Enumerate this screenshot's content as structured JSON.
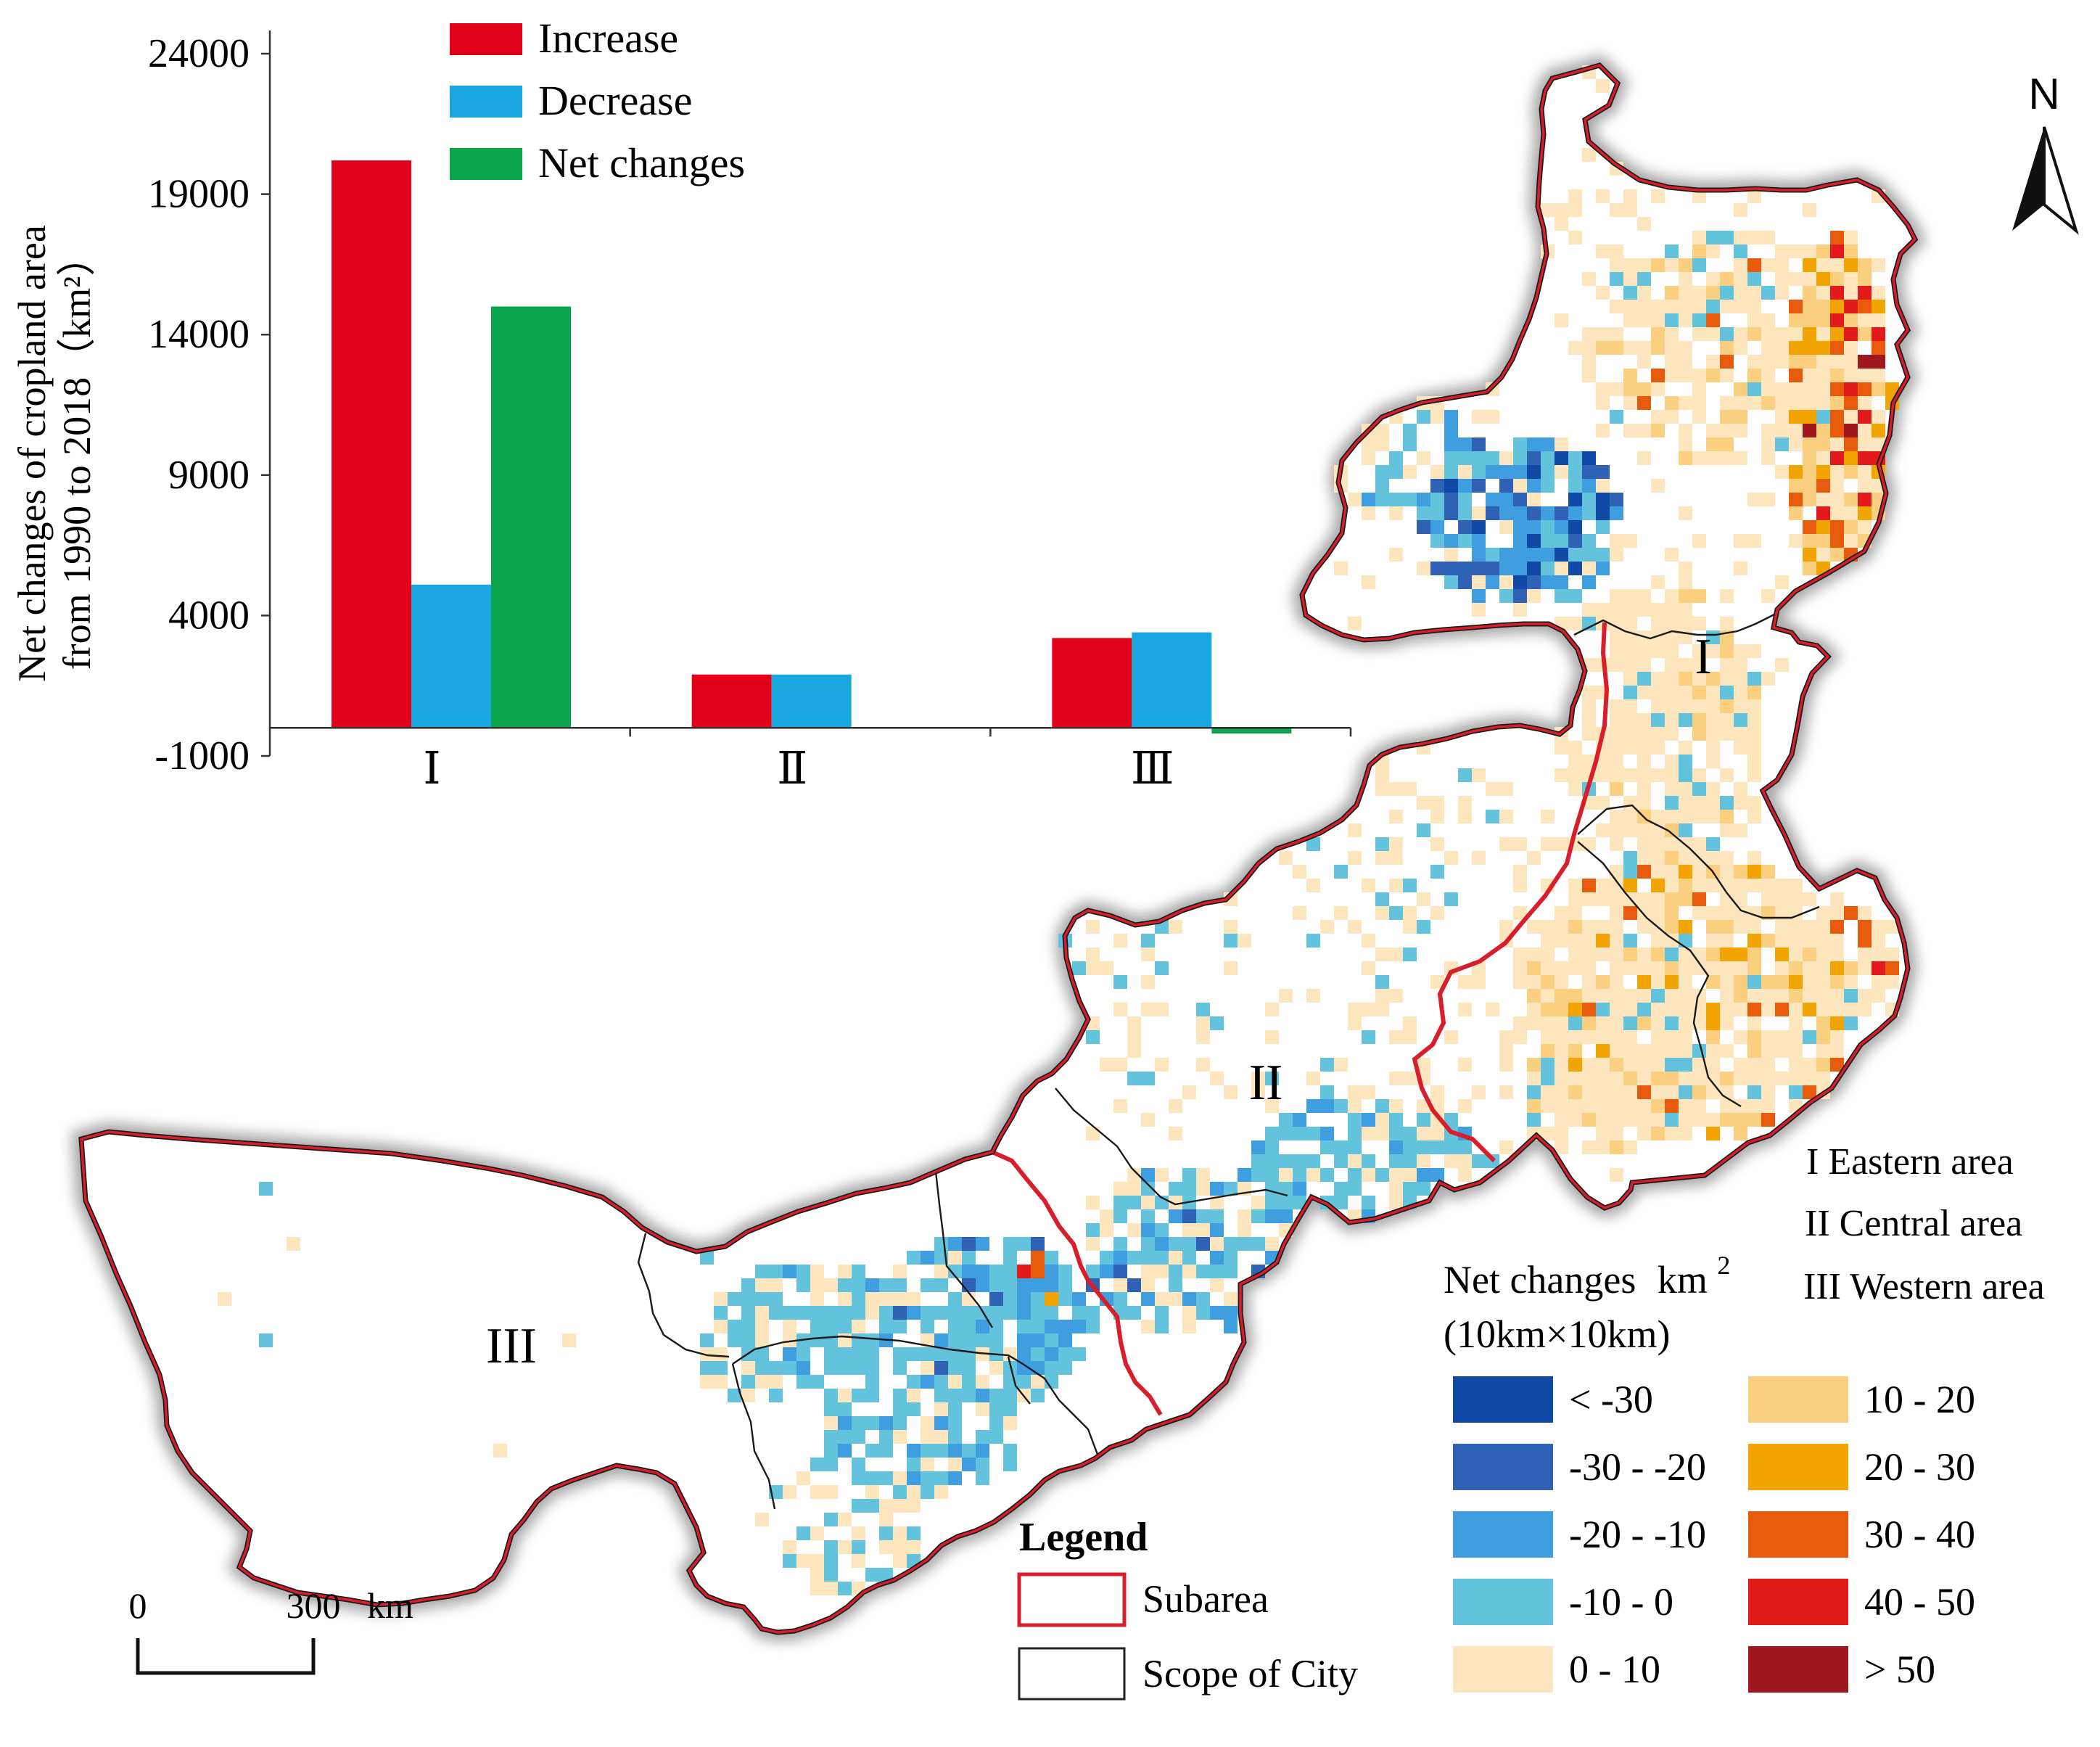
{
  "chart_data": {
    "type": "bar",
    "categories": [
      "Ⅰ",
      "Ⅱ",
      "Ⅲ"
    ],
    "series": [
      {
        "name": "Increase",
        "values": [
          20200,
          1900,
          3200
        ],
        "color": "#e2001a"
      },
      {
        "name": "Decrease",
        "values": [
          5100,
          1900,
          3400
        ],
        "color": "#1aa7e0"
      },
      {
        "name": "Net changes",
        "values": [
          15000,
          0,
          -200
        ],
        "color": "#0aa54a"
      }
    ],
    "ylabel_line1": "Net changes of cropland area",
    "ylabel_line2": "from 1990 to 2018（km²）",
    "ylim": [
      -1000,
      24000
    ],
    "yticks": [
      24000,
      19000,
      14000,
      9000,
      4000,
      -1000
    ],
    "ytick_labels": [
      "24000",
      "19000",
      "14000",
      "9000",
      "4000",
      "-1000"
    ],
    "legend_position": "top"
  },
  "map": {
    "north_label": "N",
    "region_labels": [
      "I",
      "II",
      "III"
    ],
    "area_names": [
      "I Eastern area",
      "II Central area",
      "III Western area"
    ],
    "subarea_color": "#d81e2b",
    "scale_bar": {
      "start": "0",
      "end": "300",
      "unit": "km"
    },
    "legend": {
      "title": "Legend",
      "subarea": "Subarea",
      "city": "Scope of City"
    },
    "net_legend": {
      "title_line1": "Net changes",
      "title_unit": "km",
      "title_sup": "2",
      "title_line2": "(10km×10km)",
      "classes": [
        {
          "label": "< -30",
          "color": "#114aa6"
        },
        {
          "label": "-30 - -20",
          "color": "#2f62b5"
        },
        {
          "label": "-20 - -10",
          "color": "#3f9ee0"
        },
        {
          "label": "-10 - 0",
          "color": "#63c3dc"
        },
        {
          "label": "0 - 10",
          "color": "#fde5bd"
        },
        {
          "label": "10 - 20",
          "color": "#fbcf80"
        },
        {
          "label": "20 - 30",
          "color": "#f2a400"
        },
        {
          "label": "30 - 40",
          "color": "#e85a0c"
        },
        {
          "label": "40 - 50",
          "color": "#e31a1c"
        },
        {
          "label": "> 50",
          "color": "#a0171e"
        }
      ]
    }
  }
}
